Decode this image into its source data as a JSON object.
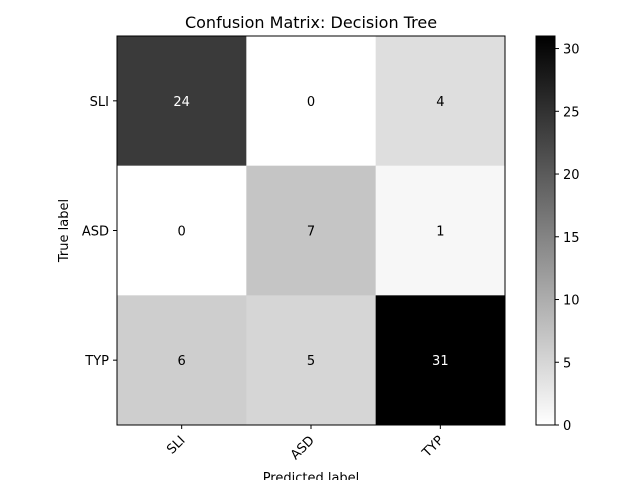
{
  "chart_data": {
    "type": "heatmap",
    "title": "Confusion Matrix: Decision Tree",
    "xlabel": "Predicted label",
    "ylabel": "True label",
    "x_categories": [
      "SLI",
      "ASD",
      "TYP"
    ],
    "y_categories": [
      "SLI",
      "ASD",
      "TYP"
    ],
    "values": [
      [
        24,
        0,
        4
      ],
      [
        0,
        7,
        1
      ],
      [
        6,
        5,
        31
      ]
    ],
    "colormap": "Greys",
    "vmin": 0,
    "vmax": 31,
    "colorbar_ticks": [
      0,
      5,
      10,
      15,
      20,
      25,
      30
    ]
  }
}
